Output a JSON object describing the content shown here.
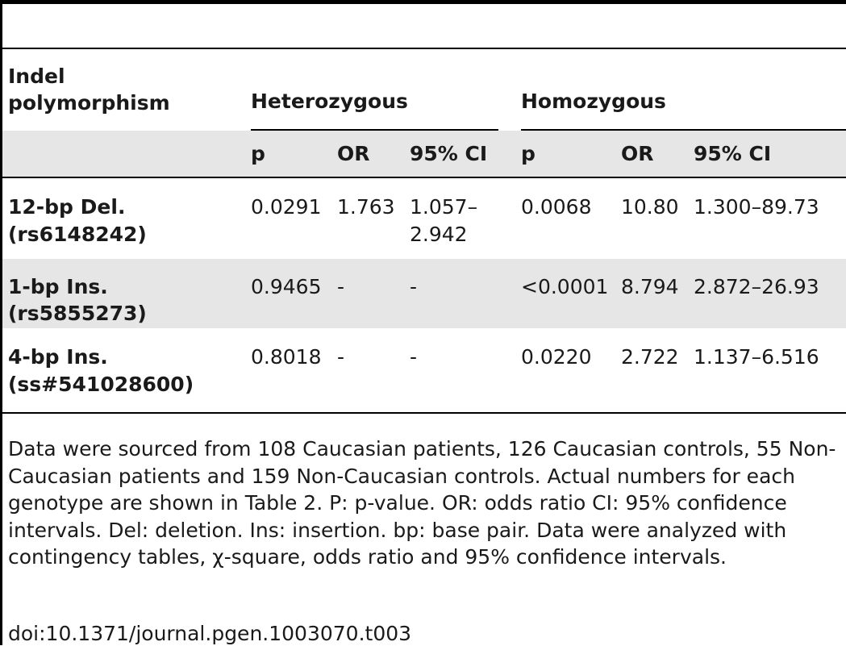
{
  "table": {
    "header": {
      "col1": [
        "Indel",
        "polymorphism"
      ],
      "group_heterozygous": "Heterozygous",
      "group_homozygous": "Homozygous",
      "subheaders": [
        "p",
        "OR",
        "95% CI",
        "p",
        "OR",
        "95% CI"
      ]
    },
    "rows": [
      {
        "name": [
          "12-bp Del.",
          "(rs6148242)"
        ],
        "het_p": "0.0291",
        "het_or": "1.763",
        "het_ci": [
          "1.057–",
          "2.942"
        ],
        "hom_p": "0.0068",
        "hom_or": "10.80",
        "hom_ci": "1.300–89.73"
      },
      {
        "name": [
          "1-bp Ins.",
          "(rs5855273)"
        ],
        "het_p": "0.9465",
        "het_or": "-",
        "het_ci": [
          "-",
          ""
        ],
        "hom_p": "<0.0001",
        "hom_or": "8.794",
        "hom_ci": "2.872–26.93"
      },
      {
        "name": [
          "4-bp Ins.",
          "(ss#541028600)"
        ],
        "het_p": "0.8018",
        "het_or": "-",
        "het_ci": [
          "-",
          ""
        ],
        "hom_p": "0.0220",
        "hom_or": "2.722",
        "hom_ci": "1.137–6.516"
      }
    ]
  },
  "footer": {
    "note": "Data were sourced from 108 Caucasian patients, 126 Caucasian controls, 55 Non-Caucasian patients and 159 Non-Caucasian controls. Actual numbers for each genotype are shown in Table 2. P: p-value. OR: odds ratio CI: 95% confidence intervals. Del: deletion. Ins: insertion. bp: base pair. Data were analyzed with contingency tables, χ-square, odds ratio and 95% confidence intervals.",
    "doi": "doi:10.1371/journal.pgen.1003070.t003"
  }
}
